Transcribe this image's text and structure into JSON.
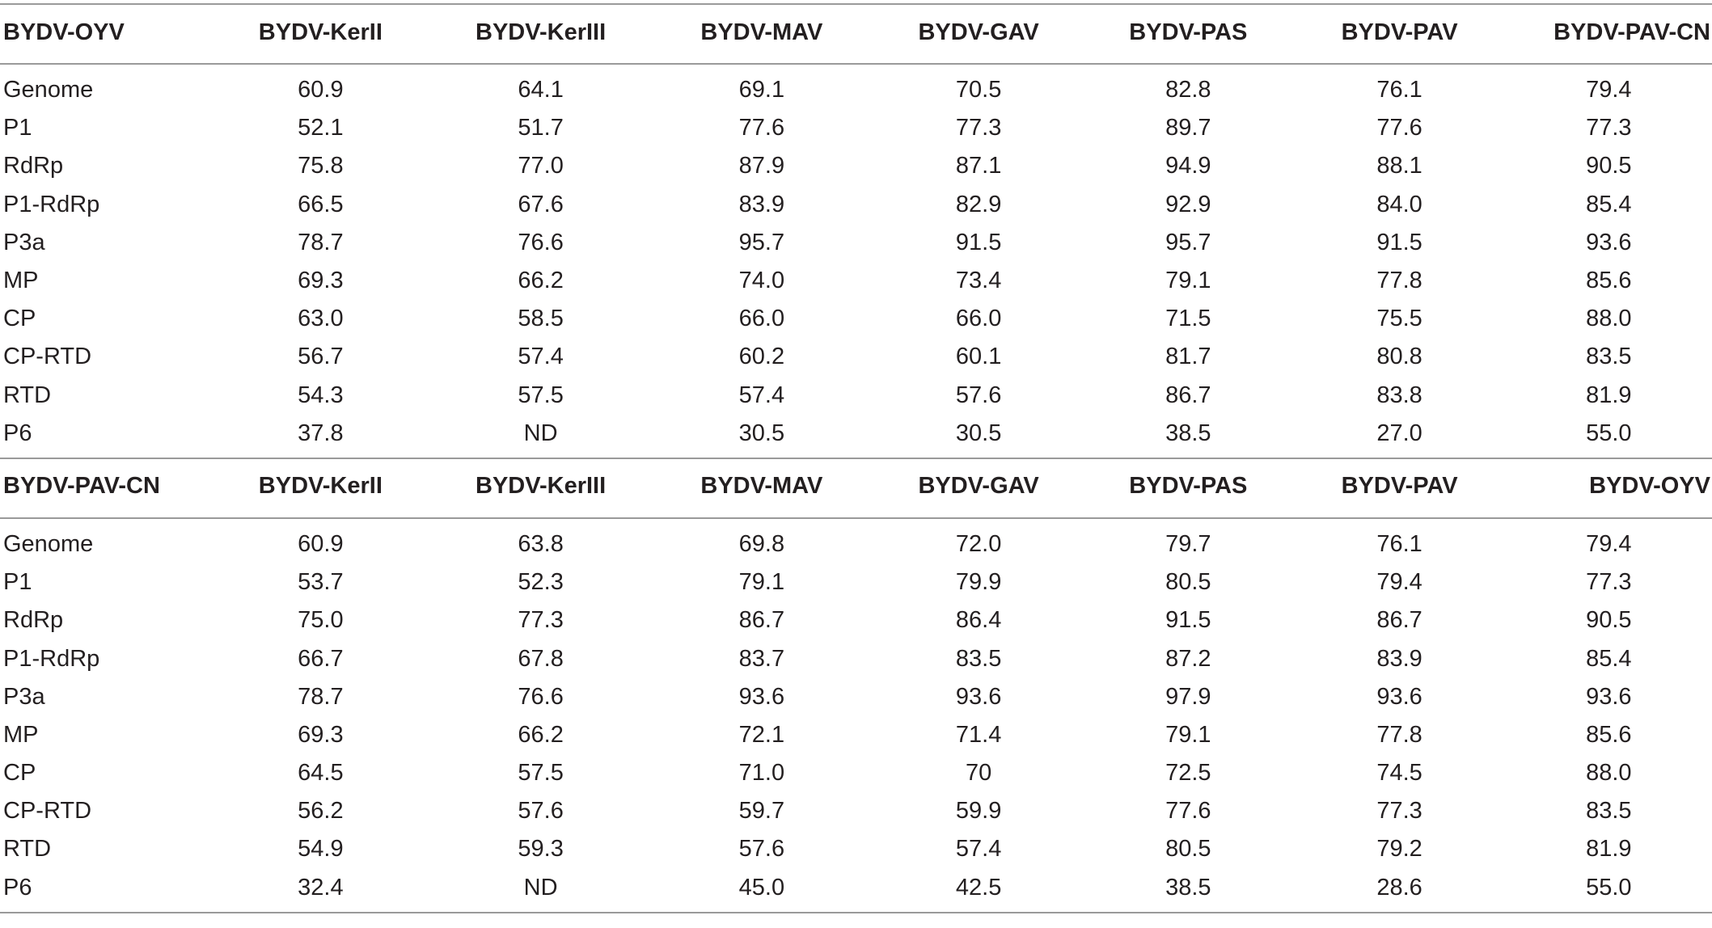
{
  "sections": [
    {
      "reference": "BYDV-OYV",
      "columns": [
        "BYDV-KerII",
        "BYDV-KerIII",
        "BYDV-MAV",
        "BYDV-GAV",
        "BYDV-PAS",
        "BYDV-PAV",
        "BYDV-PAV-CN"
      ],
      "rows": [
        {
          "label": "Genome",
          "values": [
            "60.9",
            "64.1",
            "69.1",
            "70.5",
            "82.8",
            "76.1",
            "79.4"
          ]
        },
        {
          "label": "P1",
          "values": [
            "52.1",
            "51.7",
            "77.6",
            "77.3",
            "89.7",
            "77.6",
            "77.3"
          ]
        },
        {
          "label": "RdRp",
          "values": [
            "75.8",
            "77.0",
            "87.9",
            "87.1",
            "94.9",
            "88.1",
            "90.5"
          ]
        },
        {
          "label": "P1-RdRp",
          "values": [
            "66.5",
            "67.6",
            "83.9",
            "82.9",
            "92.9",
            "84.0",
            "85.4"
          ]
        },
        {
          "label": "P3a",
          "values": [
            "78.7",
            "76.6",
            "95.7",
            "91.5",
            "95.7",
            "91.5",
            "93.6"
          ]
        },
        {
          "label": "MP",
          "values": [
            "69.3",
            "66.2",
            "74.0",
            "73.4",
            "79.1",
            "77.8",
            "85.6"
          ]
        },
        {
          "label": "CP",
          "values": [
            "63.0",
            "58.5",
            "66.0",
            "66.0",
            "71.5",
            "75.5",
            "88.0"
          ]
        },
        {
          "label": "CP-RTD",
          "values": [
            "56.7",
            "57.4",
            "60.2",
            "60.1",
            "81.7",
            "80.8",
            "83.5"
          ]
        },
        {
          "label": "RTD",
          "values": [
            "54.3",
            "57.5",
            "57.4",
            "57.6",
            "86.7",
            "83.8",
            "81.9"
          ]
        },
        {
          "label": "P6",
          "values": [
            "37.8",
            "ND",
            "30.5",
            "30.5",
            "38.5",
            "27.0",
            "55.0"
          ]
        }
      ]
    },
    {
      "reference": "BYDV-PAV-CN",
      "columns": [
        "BYDV-KerII",
        "BYDV-KerIII",
        "BYDV-MAV",
        "BYDV-GAV",
        "BYDV-PAS",
        "BYDV-PAV",
        "BYDV-OYV"
      ],
      "rows": [
        {
          "label": "Genome",
          "values": [
            "60.9",
            "63.8",
            "69.8",
            "72.0",
            "79.7",
            "76.1",
            "79.4"
          ]
        },
        {
          "label": "P1",
          "values": [
            "53.7",
            "52.3",
            "79.1",
            "79.9",
            "80.5",
            "79.4",
            "77.3"
          ]
        },
        {
          "label": "RdRp",
          "values": [
            "75.0",
            "77.3",
            "86.7",
            "86.4",
            "91.5",
            "86.7",
            "90.5"
          ]
        },
        {
          "label": "P1-RdRp",
          "values": [
            "66.7",
            "67.8",
            "83.7",
            "83.5",
            "87.2",
            "83.9",
            "85.4"
          ]
        },
        {
          "label": "P3a",
          "values": [
            "78.7",
            "76.6",
            "93.6",
            "93.6",
            "97.9",
            "93.6",
            "93.6"
          ]
        },
        {
          "label": "MP",
          "values": [
            "69.3",
            "66.2",
            "72.1",
            "71.4",
            "79.1",
            "77.8",
            "85.6"
          ]
        },
        {
          "label": "CP",
          "values": [
            "64.5",
            "57.5",
            "71.0",
            "70",
            "72.5",
            "74.5",
            "88.0"
          ]
        },
        {
          "label": "CP-RTD",
          "values": [
            "56.2",
            "57.6",
            "59.7",
            "59.9",
            "77.6",
            "77.3",
            "83.5"
          ]
        },
        {
          "label": "RTD",
          "values": [
            "54.9",
            "59.3",
            "57.6",
            "57.4",
            "80.5",
            "79.2",
            "81.9"
          ]
        },
        {
          "label": "P6",
          "values": [
            "32.4",
            "ND",
            "45.0",
            "42.5",
            "38.5",
            "28.6",
            "55.0"
          ]
        }
      ]
    }
  ]
}
